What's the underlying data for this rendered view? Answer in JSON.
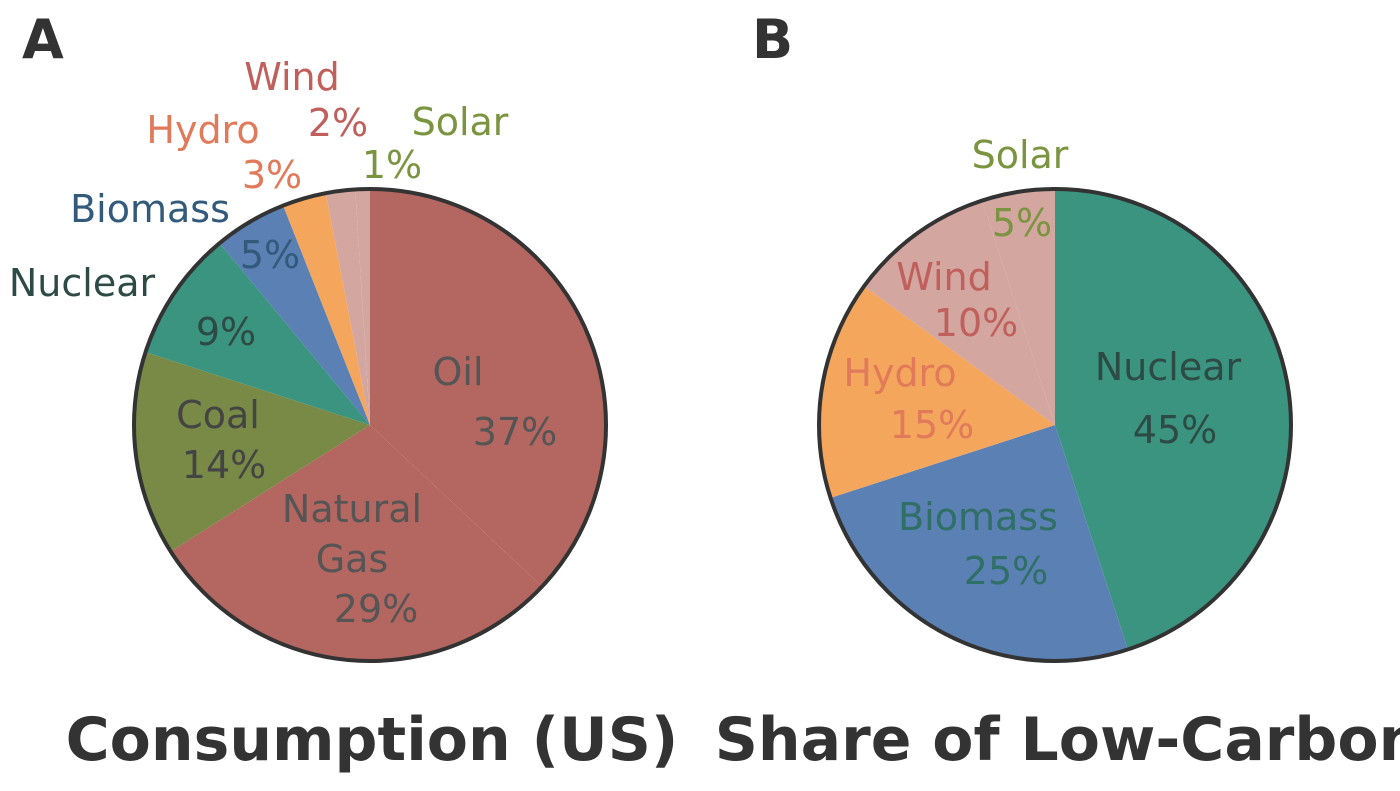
{
  "panels": [
    "A",
    "B"
  ],
  "chart_data": [
    {
      "type": "pie",
      "panel": "A",
      "title": "Consumption (US)",
      "slices": [
        {
          "label": "Oil",
          "pct_label": "37%",
          "value": 37,
          "color": "#b46660",
          "text_color": "#555555"
        },
        {
          "label": "Natural Gas",
          "label_lines": [
            "Natural",
            "Gas"
          ],
          "pct_label": "29%",
          "value": 29,
          "color": "#b46660",
          "text_color": "#555555"
        },
        {
          "label": "Coal",
          "pct_label": "14%",
          "value": 14,
          "color": "#788a46",
          "text_color": "#444444"
        },
        {
          "label": "Nuclear",
          "pct_label": "9%",
          "value": 9,
          "color": "#3a9480",
          "text_color": "#2e4a44"
        },
        {
          "label": "Biomass",
          "pct_label": "5%",
          "value": 5,
          "color": "#5b80b4",
          "text_color": "#335a7a"
        },
        {
          "label": "Hydro",
          "pct_label": "3%",
          "value": 3,
          "color": "#f4a65c",
          "text_color": "#e07a5a"
        },
        {
          "label": "Wind",
          "pct_label": "2%",
          "value": 2,
          "color": "#d4a6a0",
          "text_color": "#c0605c"
        },
        {
          "label": "Solar",
          "pct_label": "1%",
          "value": 1,
          "color": "#d4a6a0",
          "text_color": "#7a9440"
        }
      ]
    },
    {
      "type": "pie",
      "panel": "B",
      "title": "Share of Low-Carbon",
      "slices": [
        {
          "label": "Nuclear",
          "pct_label": "45%",
          "value": 45,
          "color": "#3a9480",
          "text_color": "#2e4a44"
        },
        {
          "label": "Biomass",
          "pct_label": "25%",
          "value": 25,
          "color": "#5b80b4",
          "text_color": "#2f6f66"
        },
        {
          "label": "Hydro",
          "pct_label": "15%",
          "value": 15,
          "color": "#f4a65c",
          "text_color": "#e07a5a"
        },
        {
          "label": "Wind",
          "pct_label": "10%",
          "value": 10,
          "color": "#d4a6a0",
          "text_color": "#c0605c"
        },
        {
          "label": "Solar",
          "pct_label": "5%",
          "value": 5,
          "color": "#d4a6a0",
          "text_color": "#7a9440"
        }
      ]
    }
  ]
}
